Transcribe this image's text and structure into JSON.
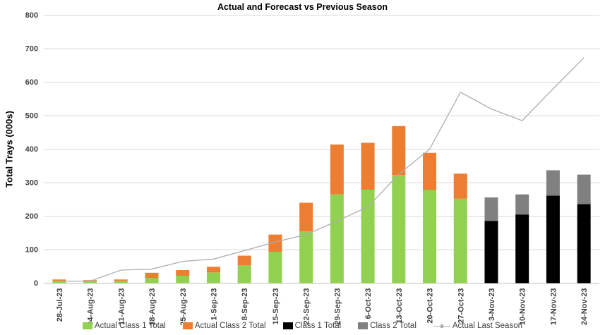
{
  "title": "Actual and Forecast vs Previous Season",
  "y_axis_label": "Total Trays (000s)",
  "colors": {
    "actual_class1": "#92D050",
    "actual_class2": "#ED7D31",
    "forecast_class1": "#000000",
    "forecast_class2": "#808080",
    "last_season_line": "#ADADAD",
    "gridline": "#D9D9D9",
    "axis_line": "#BFBFBF",
    "tick_text": "#404040"
  },
  "chart_data": {
    "type": "bar",
    "subtype": "stacked-bars-with-line-overlay",
    "title": "Actual and Forecast vs Previous Season",
    "xlabel": "",
    "ylabel": "Total Trays (000s)",
    "ylim": [
      0,
      800
    ],
    "ytick_step": 100,
    "grid": true,
    "legend_position": "bottom",
    "categories": [
      "28-Jul-23",
      "04-Aug-23",
      "11-Aug-23",
      "18-Aug-23",
      "25-Aug-23",
      "1-Sep-23",
      "8-Sep-23",
      "15-Sep-23",
      "22-Sep-23",
      "29-Sep-23",
      "6-Oct-23",
      "13-Oct-23",
      "20-Oct-23",
      "27-Oct-23",
      "3-Nov-23",
      "10-Nov-23",
      "17-Nov-23",
      "24-Nov-23"
    ],
    "series": [
      {
        "name": "Actual Class 1 Total",
        "type": "bar",
        "color": "#92D050",
        "values": [
          7,
          6,
          7,
          15,
          22,
          32,
          53,
          93,
          155,
          265,
          279,
          323,
          278,
          252,
          0,
          0,
          0,
          0
        ]
      },
      {
        "name": "Actual Class 2 Total",
        "type": "bar",
        "color": "#ED7D31",
        "values": [
          4,
          3,
          4,
          16,
          17,
          17,
          29,
          52,
          85,
          149,
          140,
          146,
          111,
          75,
          0,
          0,
          0,
          0
        ]
      },
      {
        "name": "Class 1 Total",
        "type": "bar",
        "color": "#000000",
        "values": [
          0,
          0,
          0,
          0,
          0,
          0,
          0,
          0,
          0,
          0,
          0,
          0,
          0,
          0,
          186,
          205,
          261,
          236
        ]
      },
      {
        "name": "Class 2 Total",
        "type": "bar",
        "color": "#808080",
        "values": [
          0,
          0,
          0,
          0,
          0,
          0,
          0,
          0,
          0,
          0,
          0,
          0,
          0,
          0,
          70,
          60,
          76,
          88
        ]
      },
      {
        "name": "Actual Last Season",
        "type": "line",
        "color": "#ADADAD",
        "values": [
          6,
          6,
          39,
          42,
          65,
          72,
          97,
          123,
          145,
          185,
          228,
          325,
          400,
          570,
          520,
          485,
          580,
          673
        ]
      }
    ]
  }
}
